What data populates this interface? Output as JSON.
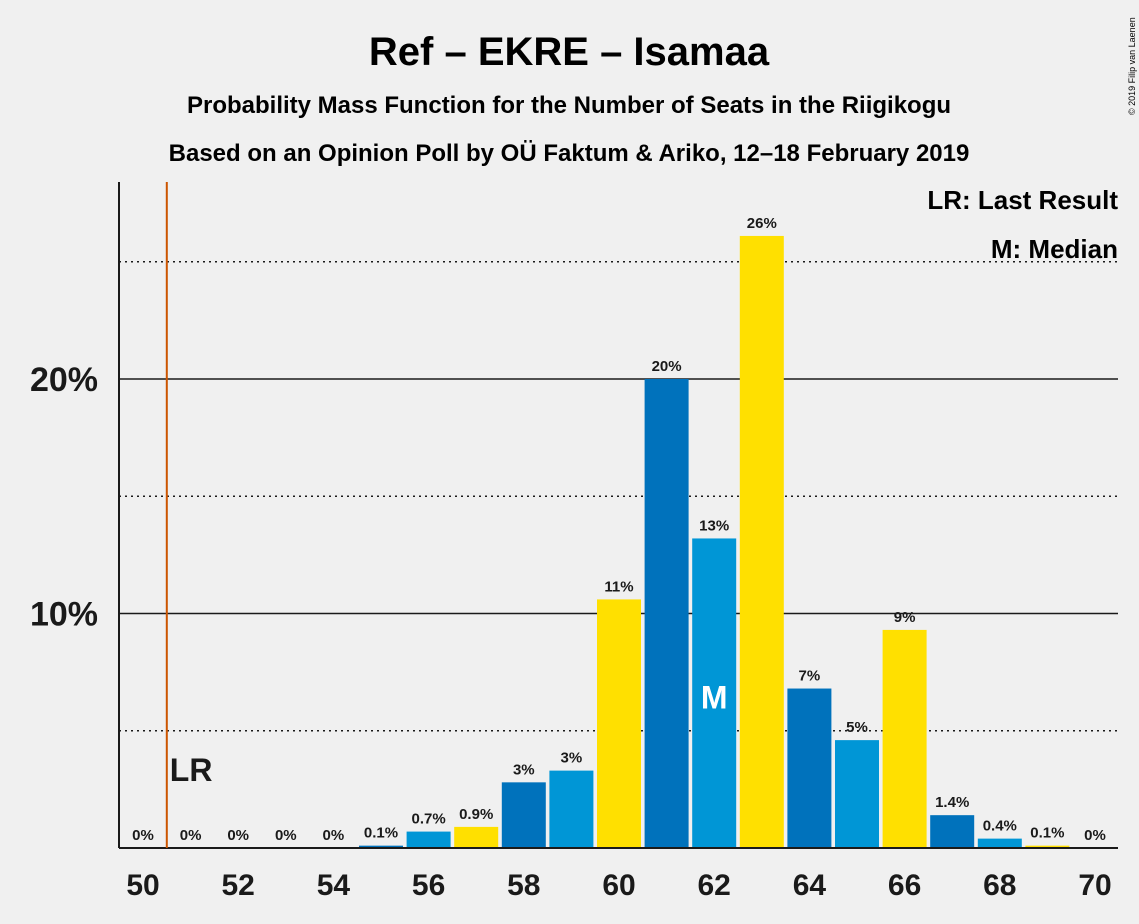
{
  "chart_data": {
    "type": "bar",
    "title": "Ref – EKRE – Isamaa",
    "subtitle_line1": "Probability Mass Function for the Number of Seats in the Riigikogu",
    "subtitle_line2": "Based on an Opinion Poll by OÜ Faktum & Ariko, 12–18 February 2019",
    "copyright": "© 2019 Filip van Laenen",
    "legend": {
      "last_result": "LR: Last Result",
      "median": "M: Median",
      "placement": "top-right"
    },
    "x": [
      50,
      51,
      52,
      53,
      54,
      55,
      56,
      57,
      58,
      59,
      60,
      61,
      62,
      63,
      64,
      65,
      66,
      67,
      68,
      69,
      70
    ],
    "values": [
      0,
      0,
      0,
      0,
      0,
      0.1,
      0.7,
      0.9,
      2.8,
      3.3,
      10.6,
      20.0,
      13.2,
      26.1,
      6.8,
      4.6,
      9.3,
      1.4,
      0.4,
      0.1,
      0
    ],
    "data_labels": [
      "0%",
      "0%",
      "0%",
      "0%",
      "0%",
      "0.1%",
      "0.7%",
      "0.9%",
      "3%",
      "3%",
      "11%",
      "20%",
      "13%",
      "26%",
      "7%",
      "5%",
      "9%",
      "1.4%",
      "0.4%",
      "0.1%",
      "0%"
    ],
    "x_tick_labels": [
      "50",
      "52",
      "54",
      "56",
      "58",
      "60",
      "62",
      "64",
      "66",
      "68",
      "70"
    ],
    "x_tick_values": [
      50,
      52,
      54,
      56,
      58,
      60,
      62,
      64,
      66,
      68,
      70
    ],
    "y_tick_labels": [
      "10%",
      "20%"
    ],
    "y_tick_values": [
      10,
      20
    ],
    "y_gridlines_solid": [
      10,
      20
    ],
    "y_gridlines_dotted": [
      5,
      15,
      25
    ],
    "ylim": [
      0,
      28.4
    ],
    "last_result": {
      "seat": 50.5,
      "label": "LR"
    },
    "median": {
      "seat": 62,
      "label": "M"
    },
    "colors": {
      "dark_blue": "#0072bc",
      "light_blue": "#0096d6",
      "yellow": "#ffe000",
      "lr_line": "#cc5500",
      "background": "#f0f0f0",
      "text": "#1a1a1a"
    },
    "bar_color_cycle": [
      "light_blue",
      "yellow",
      "dark_blue"
    ]
  }
}
